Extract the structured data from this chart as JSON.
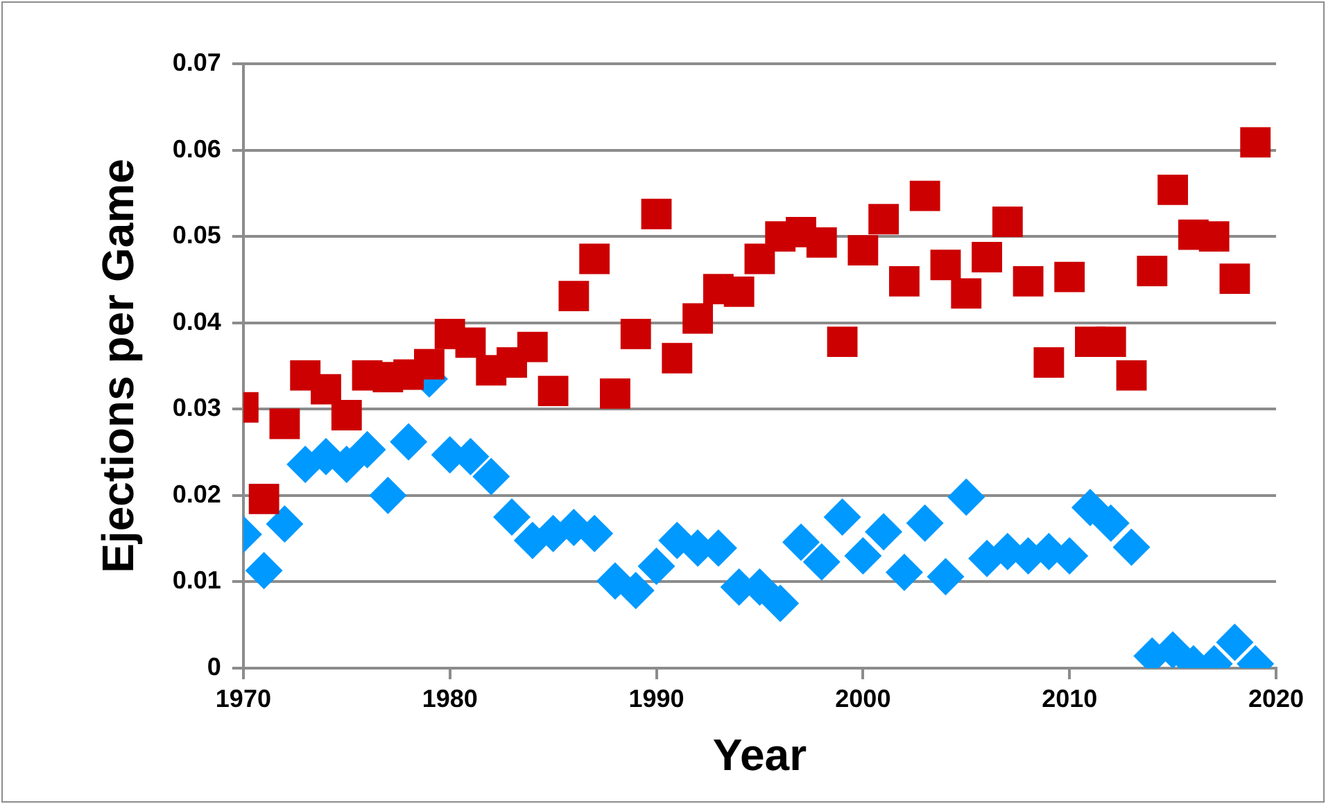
{
  "chart_data": {
    "type": "scatter",
    "xlabel": "Year",
    "ylabel": "Ejections per Game",
    "x": [
      1970,
      1971,
      1972,
      1973,
      1974,
      1975,
      1976,
      1977,
      1978,
      1979,
      1980,
      1981,
      1982,
      1983,
      1984,
      1985,
      1986,
      1987,
      1988,
      1989,
      1990,
      1991,
      1992,
      1993,
      1994,
      1995,
      1996,
      1997,
      1998,
      1999,
      2000,
      2001,
      2002,
      2003,
      2004,
      2005,
      2006,
      2007,
      2008,
      2009,
      2010,
      2011,
      2012,
      2013,
      2014,
      2015,
      2016,
      2017,
      2018,
      2019
    ],
    "series": [
      {
        "color": "#cc0000",
        "marker": "square",
        "values": [
          0.0302,
          0.0196,
          0.0283,
          0.0339,
          0.0323,
          0.0293,
          0.0339,
          0.0337,
          0.034,
          0.0352,
          0.0387,
          0.0377,
          0.0345,
          0.0354,
          0.0372,
          0.0321,
          0.0431,
          0.0474,
          0.0318,
          0.0387,
          0.0526,
          0.0359,
          0.0405,
          0.0439,
          0.0436,
          0.0474,
          0.05,
          0.0505,
          0.0493,
          0.0378,
          0.0484,
          0.052,
          0.0448,
          0.0547,
          0.0467,
          0.0434,
          0.0476,
          0.0517,
          0.0448,
          0.0354,
          0.0453,
          0.0378,
          0.0378,
          0.0339,
          0.046,
          0.0554,
          0.0502,
          0.05,
          0.0451,
          0.0609
        ]
      },
      {
        "color": "#0099ff",
        "marker": "diamond",
        "values": [
          0.0155,
          0.0113,
          0.0167,
          0.0236,
          0.0245,
          0.0236,
          0.0253,
          0.02,
          0.0262,
          0.0335,
          0.0247,
          0.0245,
          0.0222,
          0.0175,
          0.0148,
          0.0156,
          0.0163,
          0.0156,
          0.0101,
          0.009,
          0.0118,
          0.0148,
          0.0139,
          0.0139,
          0.0094,
          0.0094,
          0.0075,
          0.0146,
          0.0123,
          0.0175,
          0.013,
          0.0158,
          0.0111,
          0.0168,
          0.0106,
          0.0198,
          0.0127,
          0.0135,
          0.013,
          0.0135,
          0.013,
          0.0186,
          0.0168,
          0.014,
          0.0014,
          0.0021,
          0.0005,
          0.0005,
          0.003,
          0.0005
        ]
      }
    ],
    "xlim": [
      1970,
      2020
    ],
    "xticks": [
      1970,
      1980,
      1990,
      2000,
      2010,
      2020
    ],
    "ylim": [
      0,
      0.07
    ],
    "yticks": [
      0,
      0.01,
      0.02,
      0.03,
      0.04,
      0.05,
      0.06,
      0.07
    ],
    "grid": "y",
    "legend": false
  }
}
